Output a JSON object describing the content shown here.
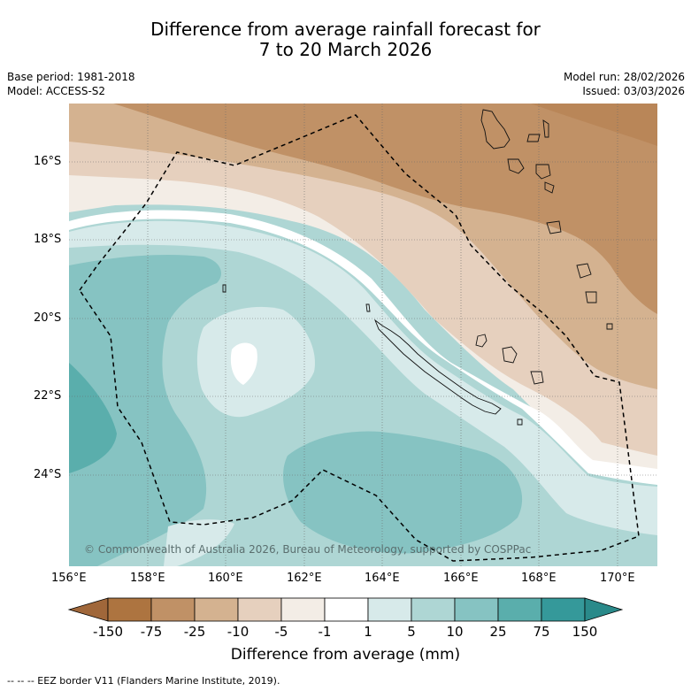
{
  "title": {
    "line1": "Difference from average rainfall forecast for",
    "line2": "7 to 20 March 2026"
  },
  "meta": {
    "base_period": "Base period: 1981-2018",
    "model": "Model: ACCESS-S2",
    "model_run": "Model run: 28/02/2026",
    "issued": "Issued: 03/03/2026"
  },
  "axes": {
    "lon_labels": [
      "156°E",
      "158°E",
      "160°E",
      "162°E",
      "164°E",
      "166°E",
      "168°E",
      "170°E"
    ],
    "lat_labels": [
      "16°S",
      "18°S",
      "20°S",
      "22°S",
      "24°S"
    ]
  },
  "copyright": "© Commonwealth of Australia 2026, Bureau of Meteorology, supported by COSPPac",
  "colorbar": {
    "title": "Difference from average (mm)",
    "labels": [
      "-150",
      "-75",
      "-25",
      "-10",
      "-5",
      "-1",
      "1",
      "5",
      "10",
      "25",
      "75",
      "150"
    ],
    "colors": [
      "#a0673a",
      "#ad7440",
      "#c09166",
      "#d4b290",
      "#e6d0be",
      "#f3ede6",
      "#ffffff",
      "#d7eaea",
      "#aed6d4",
      "#86c3c2",
      "#5aaeac",
      "#35999a",
      "#2a8a8a"
    ]
  },
  "eez_note": "--  --  -- EEZ border V11 (Flanders Marine Institute, 2019)."
}
